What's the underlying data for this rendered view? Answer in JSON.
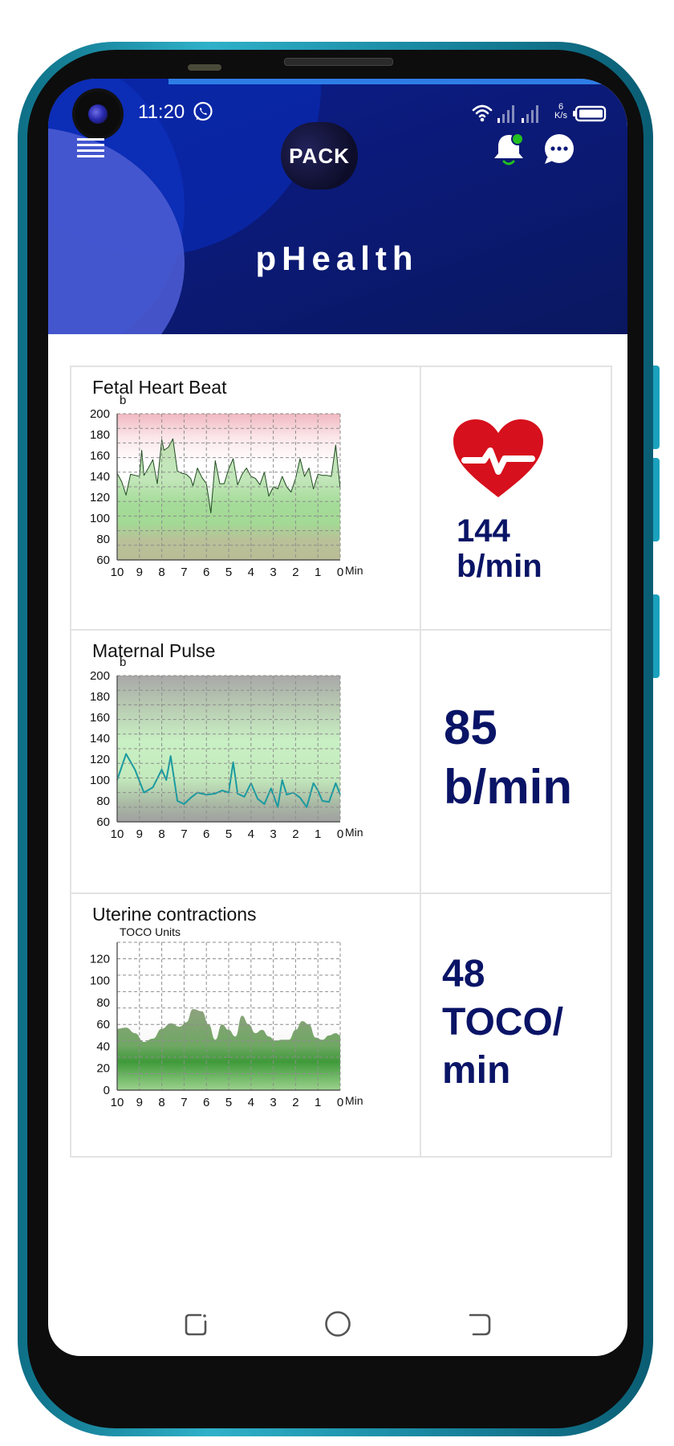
{
  "status_bar": {
    "time": "11:20",
    "network_speed_value": "6",
    "network_speed_unit": "K/s"
  },
  "header": {
    "logo_text": "PACK",
    "title": "pHealth"
  },
  "icons": {
    "menu": "menu-icon",
    "notifications": "bell-icon",
    "chat": "chat-icon",
    "heart": "heart-pulse-icon"
  },
  "colors": {
    "header_bg": "#0b1a78",
    "value_text": "#0a1466",
    "heart_red": "#d6101c",
    "fetal_line": "#1f4a1f",
    "pulse_line": "#1a9aa0",
    "notification_dot": "#22c020"
  },
  "panels": [
    {
      "title": "Fetal Heart Beat",
      "value": "144",
      "unit": "b/min"
    },
    {
      "title": "Maternal Pulse",
      "value": "85",
      "unit": "b/min"
    },
    {
      "title": "Uterine contractions",
      "value": "48",
      "unit_line1": "TOCO/",
      "unit_line2": "min"
    }
  ],
  "chart_data": [
    {
      "type": "area",
      "title": "",
      "ylabel": "b",
      "xlabel": "Min",
      "ylim": [
        60,
        200
      ],
      "yticks": [
        200,
        180,
        160,
        140,
        120,
        100,
        80,
        60
      ],
      "xticks": [
        10,
        9,
        8,
        7,
        6,
        5,
        4,
        3,
        2,
        1,
        0
      ],
      "grid": true,
      "x": [
        10,
        9.8,
        9.6,
        9.4,
        9.2,
        9.0,
        8.9,
        8.8,
        8.6,
        8.4,
        8.2,
        8.0,
        7.9,
        7.7,
        7.5,
        7.3,
        7.1,
        6.9,
        6.7,
        6.6,
        6.4,
        6.2,
        6.0,
        5.8,
        5.6,
        5.4,
        5.2,
        5.0,
        4.8,
        4.6,
        4.4,
        4.2,
        4.0,
        3.8,
        3.6,
        3.4,
        3.2,
        3.0,
        2.8,
        2.6,
        2.4,
        2.2,
        2.0,
        1.8,
        1.6,
        1.4,
        1.2,
        1.0,
        0.8,
        0.6,
        0.4,
        0.2,
        0
      ],
      "values": [
        143,
        135,
        122,
        142,
        141,
        140,
        165,
        141,
        148,
        156,
        133,
        175,
        165,
        168,
        176,
        145,
        143,
        142,
        138,
        131,
        148,
        139,
        133,
        105,
        155,
        133,
        133,
        147,
        157,
        132,
        142,
        148,
        140,
        138,
        132,
        144,
        121,
        130,
        128,
        140,
        130,
        125,
        138,
        157,
        140,
        148,
        128,
        142,
        141,
        141,
        140,
        170,
        128
      ]
    },
    {
      "type": "line",
      "title": "",
      "ylabel": "b",
      "xlabel": "Min",
      "ylim": [
        60,
        200
      ],
      "yticks": [
        200,
        180,
        160,
        140,
        120,
        100,
        80,
        60
      ],
      "xticks": [
        10,
        9,
        8,
        7,
        6,
        5,
        4,
        3,
        2,
        1,
        0
      ],
      "grid": true,
      "x": [
        10,
        9.6,
        9.2,
        8.8,
        8.4,
        8.0,
        7.8,
        7.6,
        7.3,
        7.0,
        6.7,
        6.4,
        6.0,
        5.6,
        5.3,
        5.0,
        4.8,
        4.6,
        4.3,
        4.0,
        3.7,
        3.4,
        3.1,
        2.8,
        2.6,
        2.4,
        2.1,
        1.8,
        1.5,
        1.2,
        1.0,
        0.8,
        0.5,
        0.2,
        0
      ],
      "values": [
        100,
        125,
        110,
        88,
        93,
        110,
        100,
        123,
        80,
        77,
        83,
        88,
        86,
        87,
        90,
        88,
        117,
        87,
        84,
        97,
        82,
        77,
        92,
        74,
        100,
        86,
        88,
        83,
        74,
        97,
        90,
        80,
        79,
        97,
        86
      ]
    },
    {
      "type": "area",
      "title": "",
      "ylabel": "TOCO Units",
      "xlabel": "Min",
      "ylim": [
        0,
        135
      ],
      "yticks": [
        120,
        100,
        80,
        60,
        40,
        20,
        0
      ],
      "xticks": [
        10,
        9,
        8,
        7,
        6,
        5,
        4,
        3,
        2,
        1,
        0
      ],
      "grid": true,
      "x": [
        10,
        9.6,
        9.2,
        8.8,
        8.4,
        8.0,
        7.6,
        7.2,
        6.9,
        6.6,
        6.2,
        5.9,
        5.6,
        5.3,
        5.0,
        4.7,
        4.4,
        4.1,
        3.8,
        3.5,
        3.2,
        2.9,
        2.6,
        2.3,
        2.0,
        1.7,
        1.4,
        1.1,
        0.8,
        0.5,
        0.2,
        0
      ],
      "values": [
        56,
        57,
        52,
        44,
        47,
        56,
        61,
        58,
        62,
        74,
        72,
        60,
        46,
        60,
        55,
        49,
        68,
        60,
        52,
        55,
        49,
        45,
        46,
        46,
        55,
        63,
        60,
        48,
        46,
        50,
        52,
        50
      ]
    }
  ]
}
